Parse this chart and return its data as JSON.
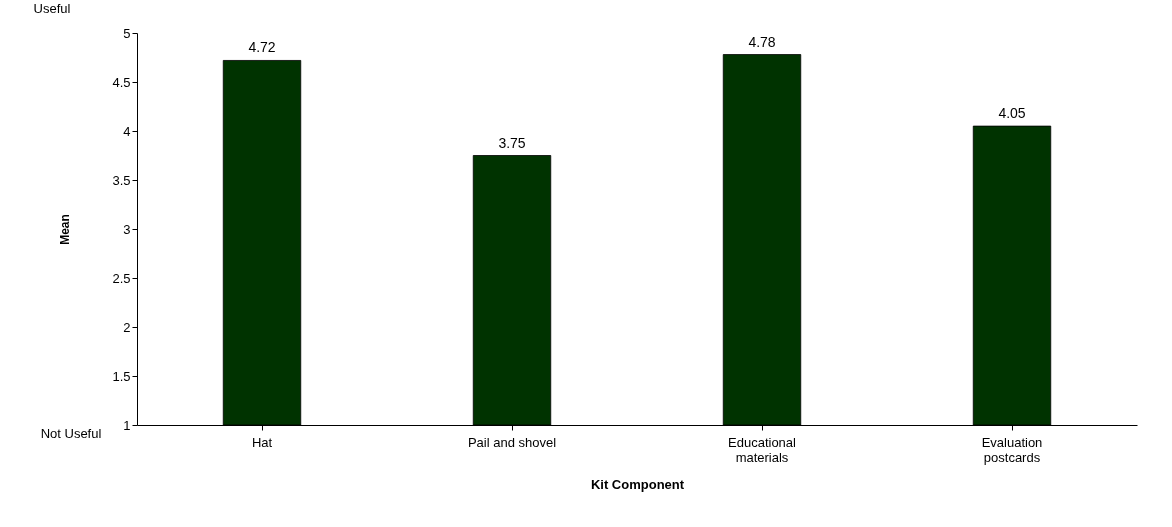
{
  "chart_data": {
    "type": "bar",
    "xlabel": "Kit Component",
    "ylabel": "Mean",
    "categories": [
      "Hat",
      "Pail and shovel",
      "Educational materials",
      "Evaluation postcards"
    ],
    "values": [
      4.72,
      3.75,
      4.78,
      4.05
    ],
    "color": "#003300",
    "ylim": [
      1,
      5
    ],
    "yticks": [
      1,
      1.5,
      2,
      2.5,
      3,
      3.5,
      4,
      4.5,
      5
    ],
    "grid": false,
    "data_labels": true,
    "annotations": [
      "Useful",
      "Not Useful"
    ]
  }
}
